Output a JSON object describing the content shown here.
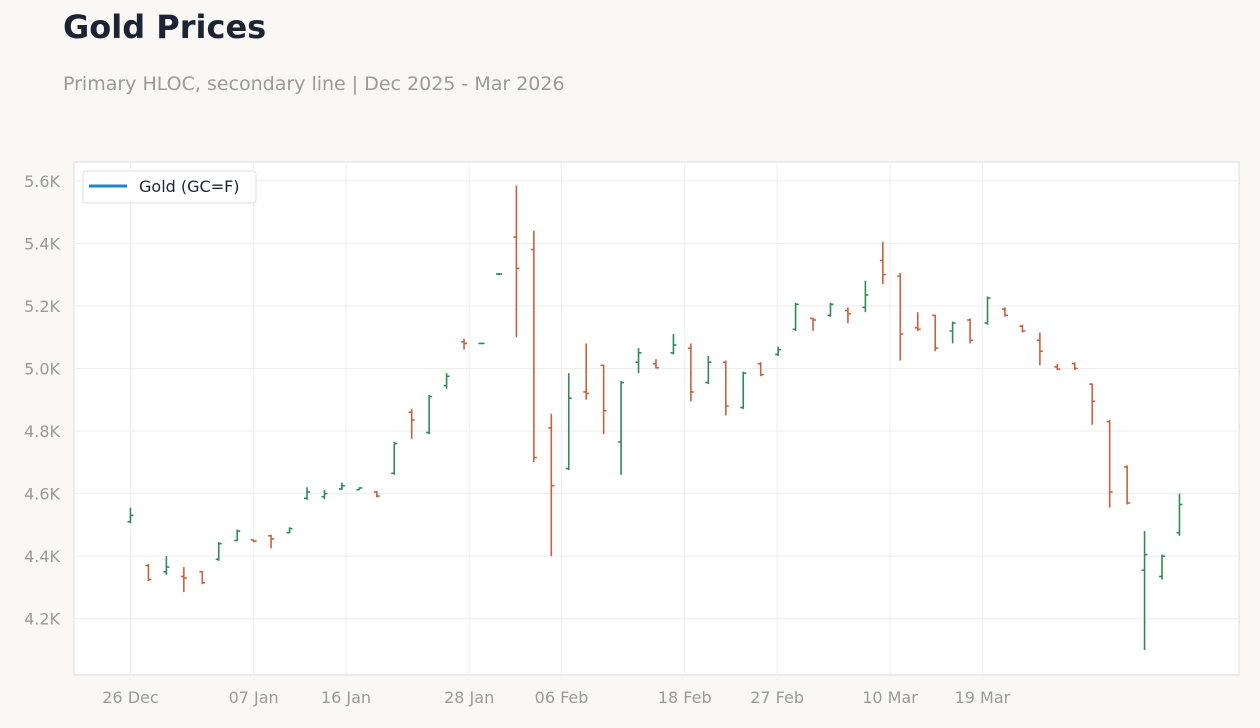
{
  "header": {
    "title": "Gold Prices",
    "subtitle": "Primary HLOC, secondary line | Dec 2025 - Mar 2026"
  },
  "colors": {
    "up": "#2e8b57",
    "down": "#c8613f",
    "legend_line": "#1f83c6",
    "grid": "#eeeeee",
    "axis_text": "#9a9a98"
  },
  "chart_data": {
    "type": "ohlc",
    "legend": {
      "entries": [
        "Gold (GC=F)"
      ],
      "position": "top-left"
    },
    "grid": true,
    "ylim": [
      4020,
      5660
    ],
    "yticks": [
      4200,
      4400,
      4600,
      4800,
      5000,
      5200,
      5400,
      5600
    ],
    "ytick_labels": [
      "4.2K",
      "4.4K",
      "4.6K",
      "4.8K",
      "5.0K",
      "5.2K",
      "5.4K",
      "5.6K"
    ],
    "x_label_days": [
      0,
      12,
      21,
      33,
      42,
      54,
      63,
      74,
      83
    ],
    "xtick_labels": [
      "26 Dec",
      "07 Jan",
      "16 Jan",
      "28 Jan",
      "06 Feb",
      "18 Feb",
      "27 Feb",
      "10 Mar",
      "19 Mar"
    ],
    "xlim_days": [
      -5.5,
      108
    ],
    "ohlc": [
      {
        "d": 0,
        "o": 4510,
        "h": 4555,
        "l": 4505,
        "c": 4530
      },
      {
        "d": 1.75,
        "o": 4370,
        "h": 4375,
        "l": 4320,
        "c": 4325
      },
      {
        "d": 3.5,
        "o": 4350,
        "h": 4400,
        "l": 4340,
        "c": 4365
      },
      {
        "d": 5.2,
        "o": 4335,
        "h": 4365,
        "l": 4285,
        "c": 4330
      },
      {
        "d": 7,
        "o": 4350,
        "h": 4352,
        "l": 4310,
        "c": 4315
      },
      {
        "d": 8.6,
        "o": 4390,
        "h": 4445,
        "l": 4385,
        "c": 4440
      },
      {
        "d": 10.4,
        "o": 4450,
        "h": 4485,
        "l": 4448,
        "c": 4480
      },
      {
        "d": 12,
        "o": 4452,
        "h": 4453,
        "l": 4445,
        "c": 4448
      },
      {
        "d": 13.7,
        "o": 4465,
        "h": 4468,
        "l": 4425,
        "c": 4455
      },
      {
        "d": 15.5,
        "o": 4475,
        "h": 4492,
        "l": 4473,
        "c": 4488
      },
      {
        "d": 17.2,
        "o": 4585,
        "h": 4620,
        "l": 4580,
        "c": 4605
      },
      {
        "d": 18.9,
        "o": 4590,
        "h": 4612,
        "l": 4582,
        "c": 4600
      },
      {
        "d": 20.6,
        "o": 4615,
        "h": 4635,
        "l": 4612,
        "c": 4625
      },
      {
        "d": 22.3,
        "o": 4612,
        "h": 4620,
        "l": 4612,
        "c": 4618
      },
      {
        "d": 24,
        "o": 4605,
        "h": 4608,
        "l": 4588,
        "c": 4592
      },
      {
        "d": 25.7,
        "o": 4665,
        "h": 4765,
        "l": 4660,
        "c": 4760
      },
      {
        "d": 27.4,
        "o": 4860,
        "h": 4870,
        "l": 4775,
        "c": 4835
      },
      {
        "d": 29.1,
        "o": 4795,
        "h": 4915,
        "l": 4790,
        "c": 4910
      },
      {
        "d": 30.8,
        "o": 4945,
        "h": 4985,
        "l": 4935,
        "c": 4975
      },
      {
        "d": 32.5,
        "o": 5085,
        "h": 5095,
        "l": 5060,
        "c": 5080
      },
      {
        "d": 34.2,
        "o": 5080,
        "h": 5082,
        "l": 5078,
        "c": 5080
      },
      {
        "d": 35.9,
        "o": 5302,
        "h": 5305,
        "l": 5298,
        "c": 5302
      },
      {
        "d": 37.6,
        "o": 5420,
        "h": 5585,
        "l": 5100,
        "c": 5320
      },
      {
        "d": 39.3,
        "o": 5380,
        "h": 5440,
        "l": 4700,
        "c": 4715
      },
      {
        "d": 41,
        "o": 4810,
        "h": 4855,
        "l": 4400,
        "c": 4625
      },
      {
        "d": 42.7,
        "o": 4680,
        "h": 4985,
        "l": 4675,
        "c": 4905
      },
      {
        "d": 44.4,
        "o": 4925,
        "h": 5080,
        "l": 4900,
        "c": 4920
      },
      {
        "d": 46.1,
        "o": 5010,
        "h": 5012,
        "l": 4790,
        "c": 4865
      },
      {
        "d": 47.8,
        "o": 4765,
        "h": 4960,
        "l": 4660,
        "c": 4955
      },
      {
        "d": 49.5,
        "o": 5020,
        "h": 5065,
        "l": 4985,
        "c": 5050
      },
      {
        "d": 51.2,
        "o": 5015,
        "h": 5030,
        "l": 5000,
        "c": 5002
      },
      {
        "d": 52.9,
        "o": 5050,
        "h": 5110,
        "l": 5045,
        "c": 5075
      },
      {
        "d": 54.6,
        "o": 5065,
        "h": 5080,
        "l": 4895,
        "c": 4925
      },
      {
        "d": 56.3,
        "o": 4955,
        "h": 5040,
        "l": 4950,
        "c": 5020
      },
      {
        "d": 58,
        "o": 5020,
        "h": 5025,
        "l": 4850,
        "c": 4880
      },
      {
        "d": 59.7,
        "o": 4875,
        "h": 4990,
        "l": 4870,
        "c": 4985
      },
      {
        "d": 61.4,
        "o": 5015,
        "h": 5020,
        "l": 4975,
        "c": 4980
      },
      {
        "d": 63.1,
        "o": 5045,
        "h": 5070,
        "l": 5040,
        "c": 5060
      },
      {
        "d": 64.8,
        "o": 5125,
        "h": 5210,
        "l": 5120,
        "c": 5205
      },
      {
        "d": 66.5,
        "o": 5160,
        "h": 5162,
        "l": 5120,
        "c": 5155
      },
      {
        "d": 68.2,
        "o": 5170,
        "h": 5210,
        "l": 5165,
        "c": 5205
      },
      {
        "d": 69.9,
        "o": 5185,
        "h": 5195,
        "l": 5145,
        "c": 5175
      },
      {
        "d": 71.6,
        "o": 5195,
        "h": 5280,
        "l": 5180,
        "c": 5235
      },
      {
        "d": 73.3,
        "o": 5345,
        "h": 5405,
        "l": 5270,
        "c": 5300
      },
      {
        "d": 75,
        "o": 5295,
        "h": 5305,
        "l": 5025,
        "c": 5110
      },
      {
        "d": 76.7,
        "o": 5130,
        "h": 5180,
        "l": 5120,
        "c": 5125
      },
      {
        "d": 78.4,
        "o": 5170,
        "h": 5172,
        "l": 5055,
        "c": 5065
      },
      {
        "d": 80.1,
        "o": 5120,
        "h": 5150,
        "l": 5080,
        "c": 5145
      },
      {
        "d": 81.8,
        "o": 5155,
        "h": 5160,
        "l": 5080,
        "c": 5090
      },
      {
        "d": 83.5,
        "o": 5145,
        "h": 5230,
        "l": 5140,
        "c": 5225
      },
      {
        "d": 85.2,
        "o": 5190,
        "h": 5195,
        "l": 5165,
        "c": 5170
      },
      {
        "d": 86.9,
        "o": 5135,
        "h": 5140,
        "l": 5115,
        "c": 5120
      },
      {
        "d": 88.6,
        "o": 5090,
        "h": 5115,
        "l": 5010,
        "c": 5055
      },
      {
        "d": 90.3,
        "o": 5005,
        "h": 5015,
        "l": 4995,
        "c": 4998
      },
      {
        "d": 92,
        "o": 5015,
        "h": 5020,
        "l": 4995,
        "c": 5000
      },
      {
        "d": 93.7,
        "o": 4950,
        "h": 4952,
        "l": 4820,
        "c": 4895
      },
      {
        "d": 95.4,
        "o": 4830,
        "h": 4835,
        "l": 4555,
        "c": 4605
      },
      {
        "d": 97.1,
        "o": 4685,
        "h": 4690,
        "l": 4565,
        "c": 4570
      },
      {
        "d": 98.8,
        "o": 4355,
        "h": 4480,
        "l": 4100,
        "c": 4405
      },
      {
        "d": 100.5,
        "o": 4335,
        "h": 4405,
        "l": 4325,
        "c": 4400
      },
      {
        "d": 102.2,
        "o": 4475,
        "h": 4600,
        "l": 4465,
        "c": 4565
      }
    ]
  }
}
